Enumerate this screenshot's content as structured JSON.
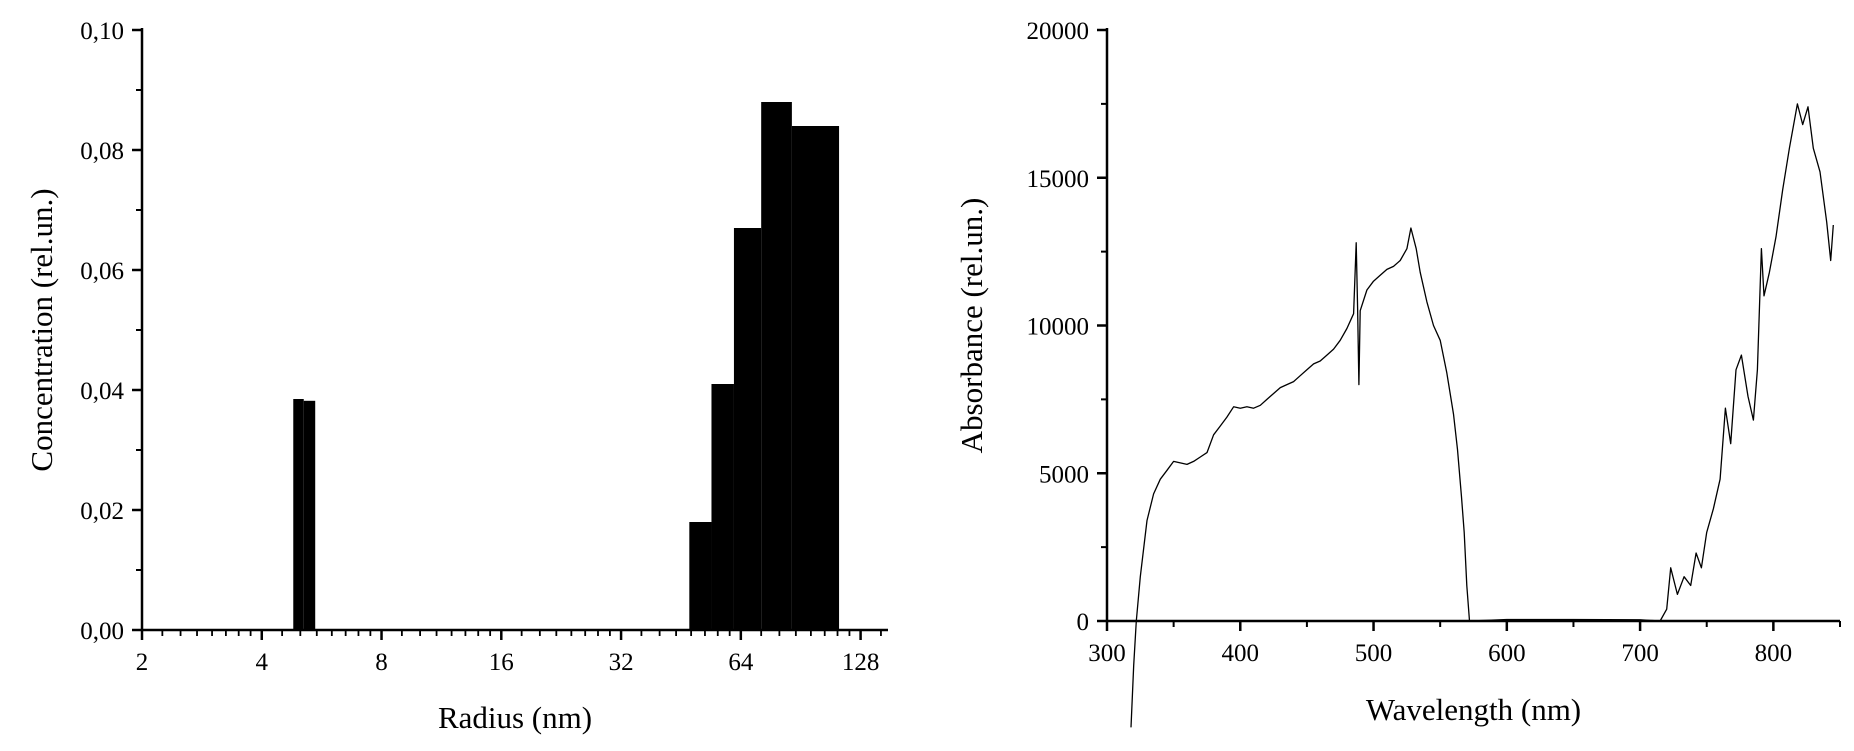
{
  "chart_data": [
    {
      "type": "bar",
      "xlabel": "Radius (nm)",
      "ylabel": "Concentration (rel.un.)",
      "xscale": "log2",
      "xlim": [
        2,
        150
      ],
      "ylim": [
        0,
        0.1
      ],
      "x_ticks": [
        {
          "value": 2,
          "label": "2"
        },
        {
          "value": 4,
          "label": "4"
        },
        {
          "value": 8,
          "label": "8"
        },
        {
          "value": 16,
          "label": "16"
        },
        {
          "value": 32,
          "label": "32"
        },
        {
          "value": 64,
          "label": "64"
        },
        {
          "value": 128,
          "label": "128"
        }
      ],
      "y_ticks": [
        {
          "value": 0.0,
          "label": "0,00"
        },
        {
          "value": 0.02,
          "label": "0,02"
        },
        {
          "value": 0.04,
          "label": "0,04"
        },
        {
          "value": 0.06,
          "label": "0,06"
        },
        {
          "value": 0.08,
          "label": "0,08"
        },
        {
          "value": 0.1,
          "label": "0,10"
        }
      ],
      "bars": [
        {
          "x0": 4.8,
          "x1": 5.1,
          "value": 0.0385
        },
        {
          "x0": 5.1,
          "x1": 5.45,
          "value": 0.0382
        },
        {
          "x0": 47.5,
          "x1": 54,
          "value": 0.018
        },
        {
          "x0": 54,
          "x1": 61.5,
          "value": 0.041
        },
        {
          "x0": 61.5,
          "x1": 72,
          "value": 0.067
        },
        {
          "x0": 72,
          "x1": 86,
          "value": 0.088
        },
        {
          "x0": 86,
          "x1": 113,
          "value": 0.084
        }
      ],
      "bar_color": "#000000",
      "grid": false
    },
    {
      "type": "line",
      "xlabel": "Wavelength (nm)",
      "ylabel": "Absorbance (rel.un.)",
      "xlim": [
        300,
        850
      ],
      "ylim": [
        0,
        20000
      ],
      "x_ticks": [
        {
          "value": 300,
          "label": "300"
        },
        {
          "value": 400,
          "label": "400"
        },
        {
          "value": 500,
          "label": "500"
        },
        {
          "value": 600,
          "label": "600"
        },
        {
          "value": 700,
          "label": "700"
        },
        {
          "value": 800,
          "label": "800"
        }
      ],
      "y_ticks": [
        {
          "value": 0,
          "label": "0"
        },
        {
          "value": 5000,
          "label": "5000"
        },
        {
          "value": 10000,
          "label": "10000"
        },
        {
          "value": 15000,
          "label": "15000"
        },
        {
          "value": 20000,
          "label": "20000"
        }
      ],
      "series": [
        {
          "line_color": "#000000",
          "points": [
            [
              318,
              -3600
            ],
            [
              320,
              -1500
            ],
            [
              322,
              0
            ],
            [
              325,
              1500
            ],
            [
              330,
              3400
            ],
            [
              335,
              4300
            ],
            [
              340,
              4800
            ],
            [
              345,
              5100
            ],
            [
              350,
              5400
            ],
            [
              355,
              5350
            ],
            [
              360,
              5300
            ],
            [
              365,
              5400
            ],
            [
              370,
              5550
            ],
            [
              375,
              5700
            ],
            [
              380,
              6300
            ],
            [
              385,
              6600
            ],
            [
              390,
              6900
            ],
            [
              395,
              7250
            ],
            [
              400,
              7200
            ],
            [
              405,
              7250
            ],
            [
              410,
              7200
            ],
            [
              415,
              7300
            ],
            [
              420,
              7500
            ],
            [
              425,
              7700
            ],
            [
              430,
              7900
            ],
            [
              435,
              8000
            ],
            [
              440,
              8100
            ],
            [
              445,
              8300
            ],
            [
              450,
              8500
            ],
            [
              455,
              8700
            ],
            [
              460,
              8800
            ],
            [
              465,
              9000
            ],
            [
              470,
              9200
            ],
            [
              475,
              9500
            ],
            [
              480,
              9900
            ],
            [
              485,
              10400
            ],
            [
              487,
              12800
            ],
            [
              488,
              10600
            ],
            [
              489,
              8000
            ],
            [
              490,
              10500
            ],
            [
              495,
              11200
            ],
            [
              500,
              11500
            ],
            [
              505,
              11700
            ],
            [
              510,
              11900
            ],
            [
              515,
              12000
            ],
            [
              520,
              12200
            ],
            [
              525,
              12600
            ],
            [
              528,
              13300
            ],
            [
              532,
              12600
            ],
            [
              535,
              11800
            ],
            [
              540,
              10800
            ],
            [
              545,
              10000
            ],
            [
              550,
              9500
            ],
            [
              555,
              8400
            ],
            [
              560,
              7000
            ],
            [
              563,
              5800
            ],
            [
              566,
              4200
            ],
            [
              568,
              3000
            ],
            [
              570,
              1200
            ],
            [
              572,
              0
            ],
            [
              600,
              50
            ],
            [
              650,
              50
            ],
            [
              700,
              40
            ],
            [
              715,
              0
            ],
            [
              720,
              400
            ],
            [
              723,
              1800
            ],
            [
              728,
              900
            ],
            [
              733,
              1500
            ],
            [
              738,
              1200
            ],
            [
              742,
              2300
            ],
            [
              746,
              1800
            ],
            [
              750,
              3000
            ],
            [
              755,
              3800
            ],
            [
              760,
              4800
            ],
            [
              764,
              7200
            ],
            [
              768,
              6000
            ],
            [
              772,
              8500
            ],
            [
              776,
              9000
            ],
            [
              781,
              7600
            ],
            [
              785,
              6800
            ],
            [
              788,
              8500
            ],
            [
              791,
              12600
            ],
            [
              793,
              11000
            ],
            [
              797,
              11800
            ],
            [
              802,
              13000
            ],
            [
              807,
              14600
            ],
            [
              812,
              16000
            ],
            [
              818,
              17500
            ],
            [
              822,
              16800
            ],
            [
              826,
              17400
            ],
            [
              830,
              16000
            ],
            [
              835,
              15200
            ],
            [
              840,
              13500
            ],
            [
              843,
              12200
            ],
            [
              845,
              13400
            ]
          ]
        }
      ],
      "grid": false
    }
  ]
}
